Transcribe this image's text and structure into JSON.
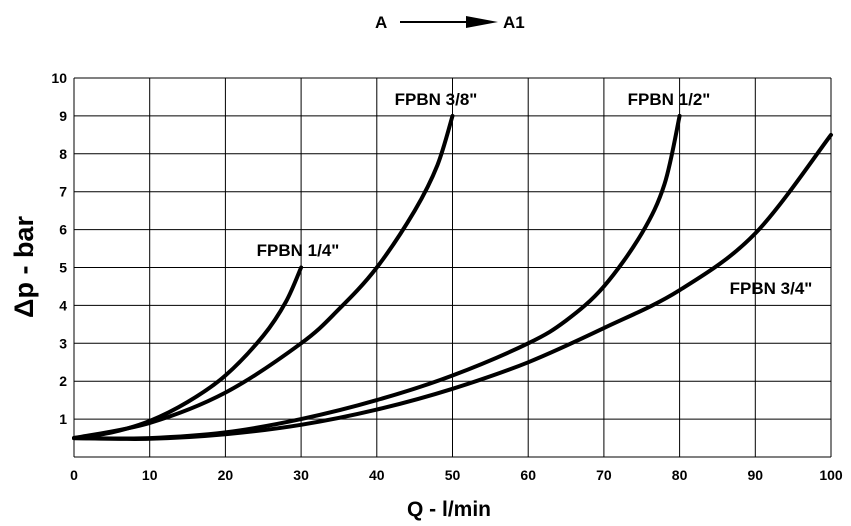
{
  "chart_data": {
    "type": "line",
    "title": "",
    "flow": {
      "from": "A",
      "to": "A1"
    },
    "xlabel": "Q - l/min",
    "ylabel": "Δp - bar",
    "xlim": [
      0,
      100
    ],
    "ylim": [
      0,
      10
    ],
    "xticks": [
      "0",
      "10",
      "20",
      "30",
      "40",
      "50",
      "60",
      "70",
      "80",
      "90",
      "100"
    ],
    "yticks": [
      "1",
      "2",
      "3",
      "4",
      "5",
      "6",
      "7",
      "8",
      "9",
      "10"
    ],
    "grid": true,
    "series": [
      {
        "name": "FPBN 1/4\"",
        "x": [
          0,
          5,
          10,
          15,
          20,
          25,
          28,
          30
        ],
        "y": [
          0.5,
          0.65,
          0.95,
          1.45,
          2.15,
          3.2,
          4.1,
          5.0
        ]
      },
      {
        "name": "FPBN 3/8\"",
        "x": [
          0,
          10,
          20,
          30,
          35,
          40,
          45,
          48,
          50
        ],
        "y": [
          0.5,
          0.9,
          1.7,
          3.0,
          3.9,
          5.0,
          6.5,
          7.7,
          9.0
        ]
      },
      {
        "name": "FPBN 1/2\"",
        "x": [
          0,
          10,
          20,
          30,
          40,
          50,
          60,
          65,
          70,
          75,
          78,
          80
        ],
        "y": [
          0.5,
          0.5,
          0.65,
          1.0,
          1.5,
          2.15,
          3.0,
          3.6,
          4.5,
          5.9,
          7.2,
          9.0
        ]
      },
      {
        "name": "FPBN 3/4\"",
        "x": [
          0,
          10,
          20,
          30,
          40,
          50,
          60,
          70,
          80,
          90,
          100
        ],
        "y": [
          0.5,
          0.48,
          0.6,
          0.85,
          1.25,
          1.8,
          2.5,
          3.4,
          4.4,
          5.9,
          8.5
        ]
      }
    ]
  }
}
